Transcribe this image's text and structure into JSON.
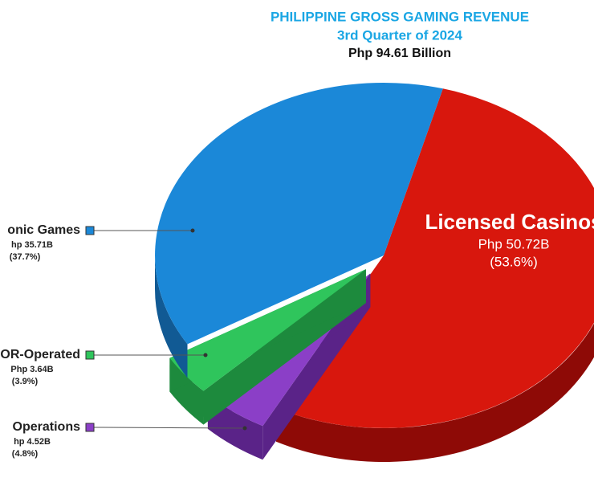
{
  "chart_data": {
    "type": "pie3d",
    "title": "PHILIPPINE GROSS GAMING REVENUE",
    "subtitle": "3rd Quarter of 2024",
    "total_label": "Php 94.61 Billion",
    "categories": [
      "Licensed Casinos",
      "Operations",
      "OR-Operated",
      "onic Games"
    ],
    "values": [
      50.72,
      4.52,
      3.64,
      35.71
    ],
    "value_labels": [
      "Php 50.72B",
      "hp 4.52B",
      "Php 3.64B",
      "hp 35.71B"
    ],
    "percentages": [
      53.6,
      4.8,
      3.9,
      37.7
    ],
    "percentage_labels": [
      "(53.6%)",
      "(4.8%)",
      "(3.9%)",
      "(37.7%)"
    ],
    "colors": [
      "#d8170d",
      "#8b3fc7",
      "#2fc55c",
      "#1b88d8"
    ],
    "side_colors": [
      "#8e0a06",
      "#5a2388",
      "#1d8a3d",
      "#115a94"
    ],
    "exploded": [
      false,
      true,
      true,
      false
    ]
  }
}
